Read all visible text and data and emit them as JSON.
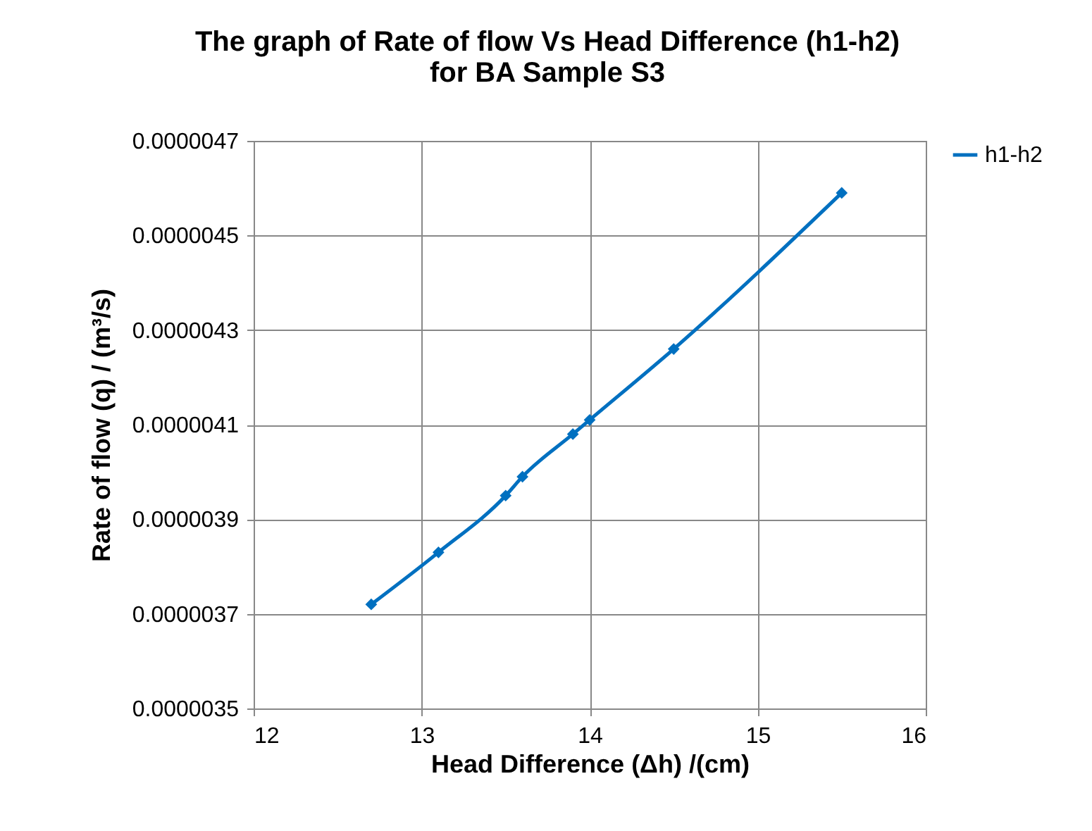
{
  "chart_data": {
    "type": "line",
    "title": "The graph of Rate of flow Vs  Head Difference (h1-h2)\nfor BA Sample S3",
    "xlabel": "Head Difference (Δh)  /(cm)",
    "ylabel": "Rate of flow  (q)  / (m³/s)",
    "x": [
      12.7,
      13.1,
      13.5,
      13.6,
      13.9,
      14.0,
      14.5,
      15.5
    ],
    "series": [
      {
        "name": "h1-h2",
        "color": "#0070c0",
        "values": [
          3.72e-06,
          3.83e-06,
          3.95e-06,
          3.99e-06,
          4.08e-06,
          4.11e-06,
          4.26e-06,
          4.59e-06
        ]
      }
    ],
    "xlim": [
      12,
      16
    ],
    "xticks": [
      12,
      13,
      14,
      15,
      16
    ],
    "ylim": [
      3.5e-06,
      4.7e-06
    ],
    "yticks": [
      {
        "value": 3.5e-06,
        "label": "0.0000035"
      },
      {
        "value": 3.7e-06,
        "label": "0.0000037"
      },
      {
        "value": 3.9e-06,
        "label": "0.0000039"
      },
      {
        "value": 4.1e-06,
        "label": "0.0000041"
      },
      {
        "value": 4.3e-06,
        "label": "0.0000043"
      },
      {
        "value": 4.5e-06,
        "label": "0.0000045"
      },
      {
        "value": 4.7e-06,
        "label": "0.0000047"
      }
    ],
    "grid": true,
    "legend": "right",
    "marker": "diamond",
    "line_style": "solid"
  }
}
